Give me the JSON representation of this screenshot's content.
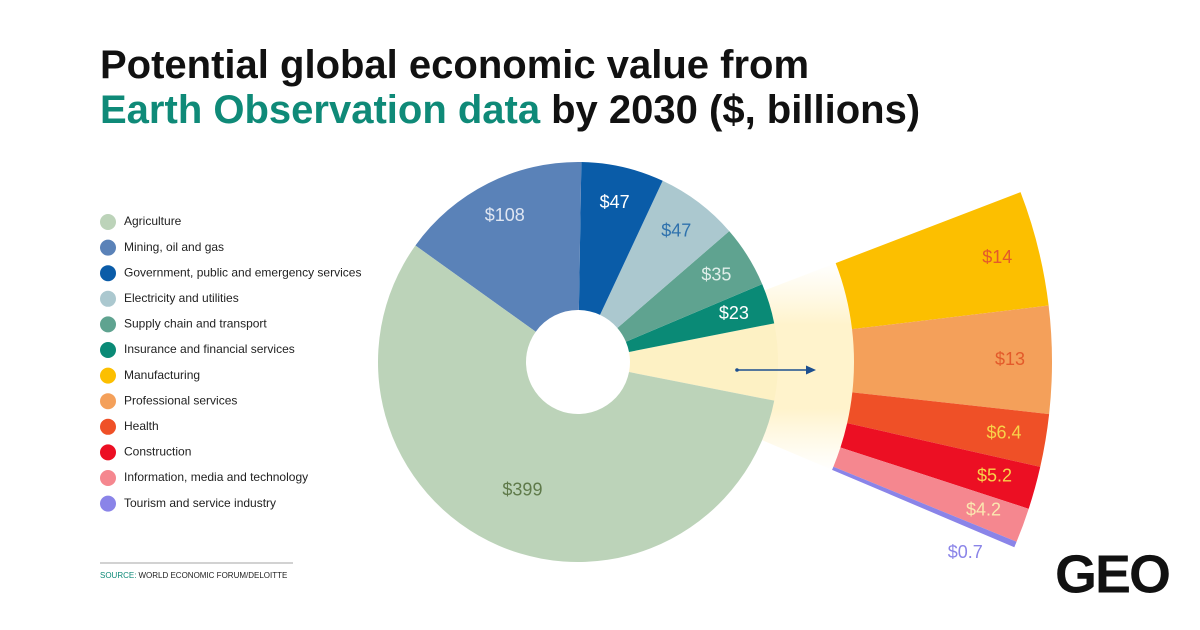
{
  "chart_data": {
    "type": "pie",
    "title": {
      "line1": "Potential global economic value from",
      "highlight": "Earth Observation data",
      "rest": "by 2030 ($, billions)"
    },
    "categories": [
      "Agriculture",
      "Mining, oil and gas",
      "Government, public and emergency services",
      "Electricity and utilities",
      "Supply chain and transport",
      "Insurance and financial services"
    ],
    "values": [
      399,
      108,
      47,
      47,
      35,
      23
    ],
    "value_labels": [
      "$399",
      "$108",
      "$47",
      "$47",
      "$35",
      "$23"
    ],
    "colors": [
      "#bcd3b9",
      "#5a82b8",
      "#0a5ca8",
      "#abc8cf",
      "#5fa390",
      "#0a8a76"
    ],
    "label_colors": [
      "#5f7a4a",
      "#dfe6f2",
      "#ffffff",
      "#2f72ad",
      "#dfeee9",
      "#ffffff"
    ],
    "breakout": {
      "categories": [
        "Manufacturing",
        "Professional services",
        "Health",
        "Construction",
        "Information, media and technology",
        "Tourism and service industry"
      ],
      "values": [
        14,
        13,
        6.4,
        5.2,
        4.2,
        0.7
      ],
      "value_labels": [
        "$14",
        "$13",
        "$6.4",
        "$5.2",
        "$4.2",
        "$0.7"
      ],
      "colors": [
        "#fcbf00",
        "#f4a05a",
        "#ef5027",
        "#ec0f23",
        "#f5878f",
        "#8a84e8"
      ],
      "label_colors": [
        "#e35a2a",
        "#e35a2a",
        "#f8d24a",
        "#f8d24a",
        "#fbe7b0",
        "#8a84e8"
      ]
    },
    "source": {
      "key": "SOURCE:",
      "text": "WORLD ECONOMIC FORUM/DELOITTE"
    },
    "logo": "GEO"
  }
}
